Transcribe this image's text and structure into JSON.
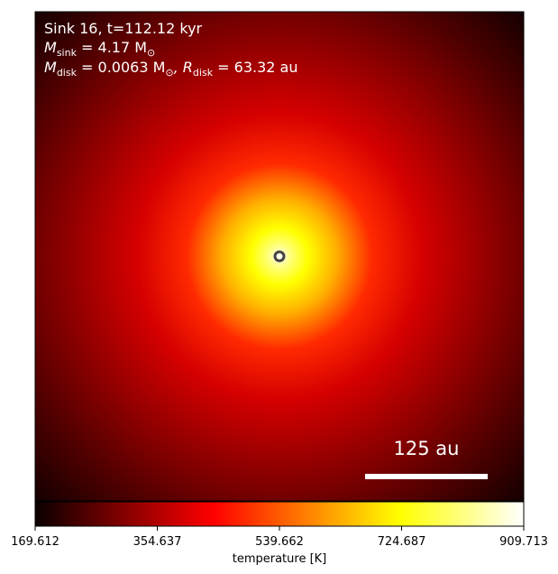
{
  "chart_data": {
    "type": "heatmap",
    "title_lines": [
      {
        "base": "Sink 16, t=112.12 kyr"
      },
      {
        "sym": "M",
        "sub": "sink",
        "rest": " = 4.17 M",
        "rest_sub": "⊙"
      },
      {
        "sym": "M",
        "sub": "disk",
        "rest": " = 0.0063 M",
        "rest_sub": "⊙",
        "sym2": ", R",
        "sub2": "disk",
        "rest2": " = 63.32 au"
      }
    ],
    "colormap": "hot",
    "colorbar": {
      "label": "temperature [K]",
      "range": [
        169.612,
        909.713
      ],
      "ticks": [
        "169.612",
        "354.637",
        "539.662",
        "724.687",
        "909.713"
      ],
      "orientation": "horizontal"
    },
    "scalebar": {
      "label": "125 au",
      "length_au": 125,
      "color": "#ffffff"
    },
    "sink": {
      "marker": "ring",
      "color": "#444444"
    },
    "center_temperature_K": 909.713,
    "edge_temperature_K": 169.612
  }
}
